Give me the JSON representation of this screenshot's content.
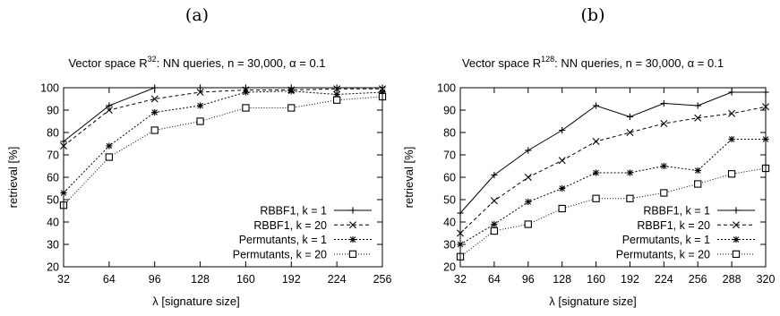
{
  "chart_data": [
    {
      "type": "line",
      "panel_label": "(a)",
      "title_prefix": "Vector space R",
      "title_sup": "32",
      "title_suffix": ": NN queries, n = 30,000, α = 0.1",
      "xlabel": "λ [signature size]",
      "ylabel": "retrieval [%]",
      "xlim": [
        32,
        256
      ],
      "ylim": [
        20,
        100
      ],
      "xticks": [
        32,
        64,
        96,
        128,
        160,
        192,
        224,
        256
      ],
      "yticks": [
        20,
        30,
        40,
        50,
        60,
        70,
        80,
        90,
        100
      ],
      "legend_position": "bottom-right",
      "series": [
        {
          "name": "RBBF1, k =  1",
          "marker": "plus",
          "dash": "solid",
          "x": [
            32,
            64,
            96,
            128,
            160,
            192,
            224,
            256
          ],
          "y": [
            76,
            92,
            100,
            100,
            100,
            100,
            100,
            100
          ]
        },
        {
          "name": "RBBF1, k = 20",
          "marker": "cross",
          "dash": "dashed",
          "x": [
            32,
            64,
            96,
            128,
            160,
            192,
            224,
            256
          ],
          "y": [
            74,
            90,
            95,
            98,
            99,
            99,
            99.5,
            99.5
          ]
        },
        {
          "name": "Permutants, k =  1",
          "marker": "star",
          "dash": "dotted",
          "x": [
            32,
            64,
            96,
            128,
            160,
            192,
            224,
            256
          ],
          "y": [
            53,
            74,
            89,
            92,
            98,
            98.5,
            97,
            98
          ]
        },
        {
          "name": "Permutants, k = 20",
          "marker": "square",
          "dash": "finedot",
          "x": [
            32,
            64,
            96,
            128,
            160,
            192,
            224,
            256
          ],
          "y": [
            47.5,
            69,
            81,
            85,
            91,
            91,
            94.5,
            96
          ]
        }
      ]
    },
    {
      "type": "line",
      "panel_label": "(b)",
      "title_prefix": "Vector space R",
      "title_sup": "128",
      "title_suffix": ": NN queries, n = 30,000, α = 0.1",
      "xlabel": "λ [signature size]",
      "ylabel": "retrieval [%]",
      "xlim": [
        32,
        320
      ],
      "ylim": [
        20,
        100
      ],
      "xticks": [
        32,
        64,
        96,
        128,
        160,
        192,
        224,
        256,
        288,
        320
      ],
      "yticks": [
        20,
        30,
        40,
        50,
        60,
        70,
        80,
        90,
        100
      ],
      "legend_position": "bottom-right",
      "series": [
        {
          "name": "RBBF1, k =  1",
          "marker": "plus",
          "dash": "solid",
          "x": [
            32,
            64,
            96,
            128,
            160,
            192,
            224,
            256,
            288,
            320
          ],
          "y": [
            44,
            61,
            72,
            81,
            92,
            87,
            93,
            92,
            98,
            98
          ]
        },
        {
          "name": "RBBF1, k = 20",
          "marker": "cross",
          "dash": "dashed",
          "x": [
            32,
            64,
            96,
            128,
            160,
            192,
            224,
            256,
            288,
            320
          ],
          "y": [
            35,
            49.5,
            60,
            67.5,
            76,
            80,
            84,
            86.5,
            88.5,
            91.5
          ]
        },
        {
          "name": "Permutants, k =  1",
          "marker": "star",
          "dash": "dotted",
          "x": [
            32,
            64,
            96,
            128,
            160,
            192,
            224,
            256,
            288,
            320
          ],
          "y": [
            30,
            39,
            49,
            55,
            62,
            62,
            65,
            63,
            77,
            77
          ]
        },
        {
          "name": "Permutants, k = 20",
          "marker": "square",
          "dash": "finedot",
          "x": [
            32,
            64,
            96,
            128,
            160,
            192,
            224,
            256,
            288,
            320
          ],
          "y": [
            24.5,
            36,
            39,
            46,
            50.5,
            50.5,
            53,
            57,
            61.5,
            64
          ]
        }
      ]
    }
  ]
}
